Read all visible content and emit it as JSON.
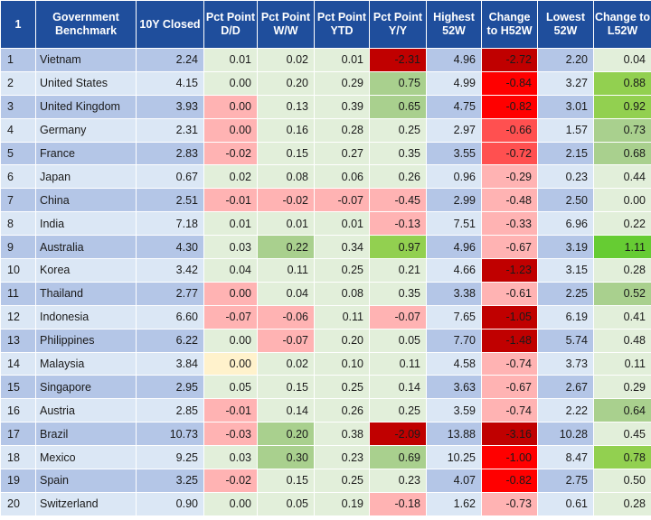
{
  "header": {
    "index": "1",
    "benchmark": "Government Benchmark",
    "closed": "10Y Closed",
    "dd": "Pct Point D/D",
    "ww": "Pct Point W/W",
    "ytd": "Pct Point YTD",
    "yy": "Pct Point Y/Y",
    "h52": "Highest 52W",
    "ch52": "Change to H52W",
    "l52": "Lowest 52W",
    "cl52": "Change to L52W"
  },
  "rows": [
    {
      "i": "1",
      "name": "Vietnam",
      "closed": "2.24",
      "dd": "0.01",
      "ww": "0.02",
      "ytd": "0.01",
      "yy": "-2.31",
      "h52": "4.96",
      "ch52": "-2.72",
      "l52": "2.20",
      "cl52": "0.04"
    },
    {
      "i": "2",
      "name": "United States",
      "closed": "4.15",
      "dd": "0.00",
      "ww": "0.20",
      "ytd": "0.29",
      "yy": "0.75",
      "h52": "4.99",
      "ch52": "-0.84",
      "l52": "3.27",
      "cl52": "0.88"
    },
    {
      "i": "3",
      "name": "United Kingdom",
      "closed": "3.93",
      "dd": "0.00",
      "ww": "0.13",
      "ytd": "0.39",
      "yy": "0.65",
      "h52": "4.75",
      "ch52": "-0.82",
      "l52": "3.01",
      "cl52": "0.92"
    },
    {
      "i": "4",
      "name": "Germany",
      "closed": "2.31",
      "dd": "0.00",
      "ww": "0.16",
      "ytd": "0.28",
      "yy": "0.25",
      "h52": "2.97",
      "ch52": "-0.66",
      "l52": "1.57",
      "cl52": "0.73"
    },
    {
      "i": "5",
      "name": "France",
      "closed": "2.83",
      "dd": "-0.02",
      "ww": "0.15",
      "ytd": "0.27",
      "yy": "0.35",
      "h52": "3.55",
      "ch52": "-0.72",
      "l52": "2.15",
      "cl52": "0.68"
    },
    {
      "i": "6",
      "name": "Japan",
      "closed": "0.67",
      "dd": "0.02",
      "ww": "0.08",
      "ytd": "0.06",
      "yy": "0.26",
      "h52": "0.96",
      "ch52": "-0.29",
      "l52": "0.23",
      "cl52": "0.44"
    },
    {
      "i": "7",
      "name": "China",
      "closed": "2.51",
      "dd": "-0.01",
      "ww": "-0.02",
      "ytd": "-0.07",
      "yy": "-0.45",
      "h52": "2.99",
      "ch52": "-0.48",
      "l52": "2.50",
      "cl52": "0.00"
    },
    {
      "i": "8",
      "name": "India",
      "closed": "7.18",
      "dd": "0.01",
      "ww": "0.01",
      "ytd": "0.01",
      "yy": "-0.13",
      "h52": "7.51",
      "ch52": "-0.33",
      "l52": "6.96",
      "cl52": "0.22"
    },
    {
      "i": "9",
      "name": "Australia",
      "closed": "4.30",
      "dd": "0.03",
      "ww": "0.22",
      "ytd": "0.34",
      "yy": "0.97",
      "h52": "4.96",
      "ch52": "-0.67",
      "l52": "3.19",
      "cl52": "1.11"
    },
    {
      "i": "10",
      "name": "Korea",
      "closed": "3.42",
      "dd": "0.04",
      "ww": "0.11",
      "ytd": "0.25",
      "yy": "0.21",
      "h52": "4.66",
      "ch52": "-1.23",
      "l52": "3.15",
      "cl52": "0.28"
    },
    {
      "i": "11",
      "name": "Thailand",
      "closed": "2.77",
      "dd": "0.00",
      "ww": "0.04",
      "ytd": "0.08",
      "yy": "0.35",
      "h52": "3.38",
      "ch52": "-0.61",
      "l52": "2.25",
      "cl52": "0.52"
    },
    {
      "i": "12",
      "name": "Indonesia",
      "closed": "6.60",
      "dd": "-0.07",
      "ww": "-0.06",
      "ytd": "0.11",
      "yy": "-0.07",
      "h52": "7.65",
      "ch52": "-1.05",
      "l52": "6.19",
      "cl52": "0.41"
    },
    {
      "i": "13",
      "name": "Philippines",
      "closed": "6.22",
      "dd": "0.00",
      "ww": "-0.07",
      "ytd": "0.20",
      "yy": "0.05",
      "h52": "7.70",
      "ch52": "-1.48",
      "l52": "5.74",
      "cl52": "0.48"
    },
    {
      "i": "14",
      "name": "Malaysia",
      "closed": "3.84",
      "dd": "0.00",
      "ww": "0.02",
      "ytd": "0.10",
      "yy": "0.11",
      "h52": "4.58",
      "ch52": "-0.74",
      "l52": "3.73",
      "cl52": "0.11"
    },
    {
      "i": "15",
      "name": "Singapore",
      "closed": "2.95",
      "dd": "0.05",
      "ww": "0.15",
      "ytd": "0.25",
      "yy": "0.14",
      "h52": "3.63",
      "ch52": "-0.67",
      "l52": "2.67",
      "cl52": "0.29"
    },
    {
      "i": "16",
      "name": "Austria",
      "closed": "2.85",
      "dd": "-0.01",
      "ww": "0.14",
      "ytd": "0.26",
      "yy": "0.25",
      "h52": "3.59",
      "ch52": "-0.74",
      "l52": "2.22",
      "cl52": "0.64"
    },
    {
      "i": "17",
      "name": "Brazil",
      "closed": "10.73",
      "dd": "-0.03",
      "ww": "0.20",
      "ytd": "0.38",
      "yy": "-2.09",
      "h52": "13.88",
      "ch52": "-3.16",
      "l52": "10.28",
      "cl52": "0.45"
    },
    {
      "i": "18",
      "name": "Mexico",
      "closed": "9.25",
      "dd": "0.03",
      "ww": "0.30",
      "ytd": "0.23",
      "yy": "0.69",
      "h52": "10.25",
      "ch52": "-1.00",
      "l52": "8.47",
      "cl52": "0.78"
    },
    {
      "i": "19",
      "name": "Spain",
      "closed": "3.25",
      "dd": "-0.02",
      "ww": "0.15",
      "ytd": "0.25",
      "yy": "0.23",
      "h52": "4.07",
      "ch52": "-0.82",
      "l52": "2.75",
      "cl52": "0.50"
    },
    {
      "i": "20",
      "name": "Switzerland",
      "closed": "0.90",
      "dd": "0.00",
      "ww": "0.05",
      "ytd": "0.19",
      "yy": "-0.18",
      "h52": "1.62",
      "ch52": "-0.73",
      "l52": "0.61",
      "cl52": "0.28"
    }
  ],
  "colors": {
    "header": "#1f4e9c",
    "row_blue": "#b4c6e7",
    "row_light": "#dbe7f5",
    "cell_default": "#e2efda",
    "pink": "#ffb3b3",
    "red": "#ff0000",
    "dark_red": "#c00000",
    "green": "#92d050",
    "pale_yellow": "#fff2cc"
  }
}
